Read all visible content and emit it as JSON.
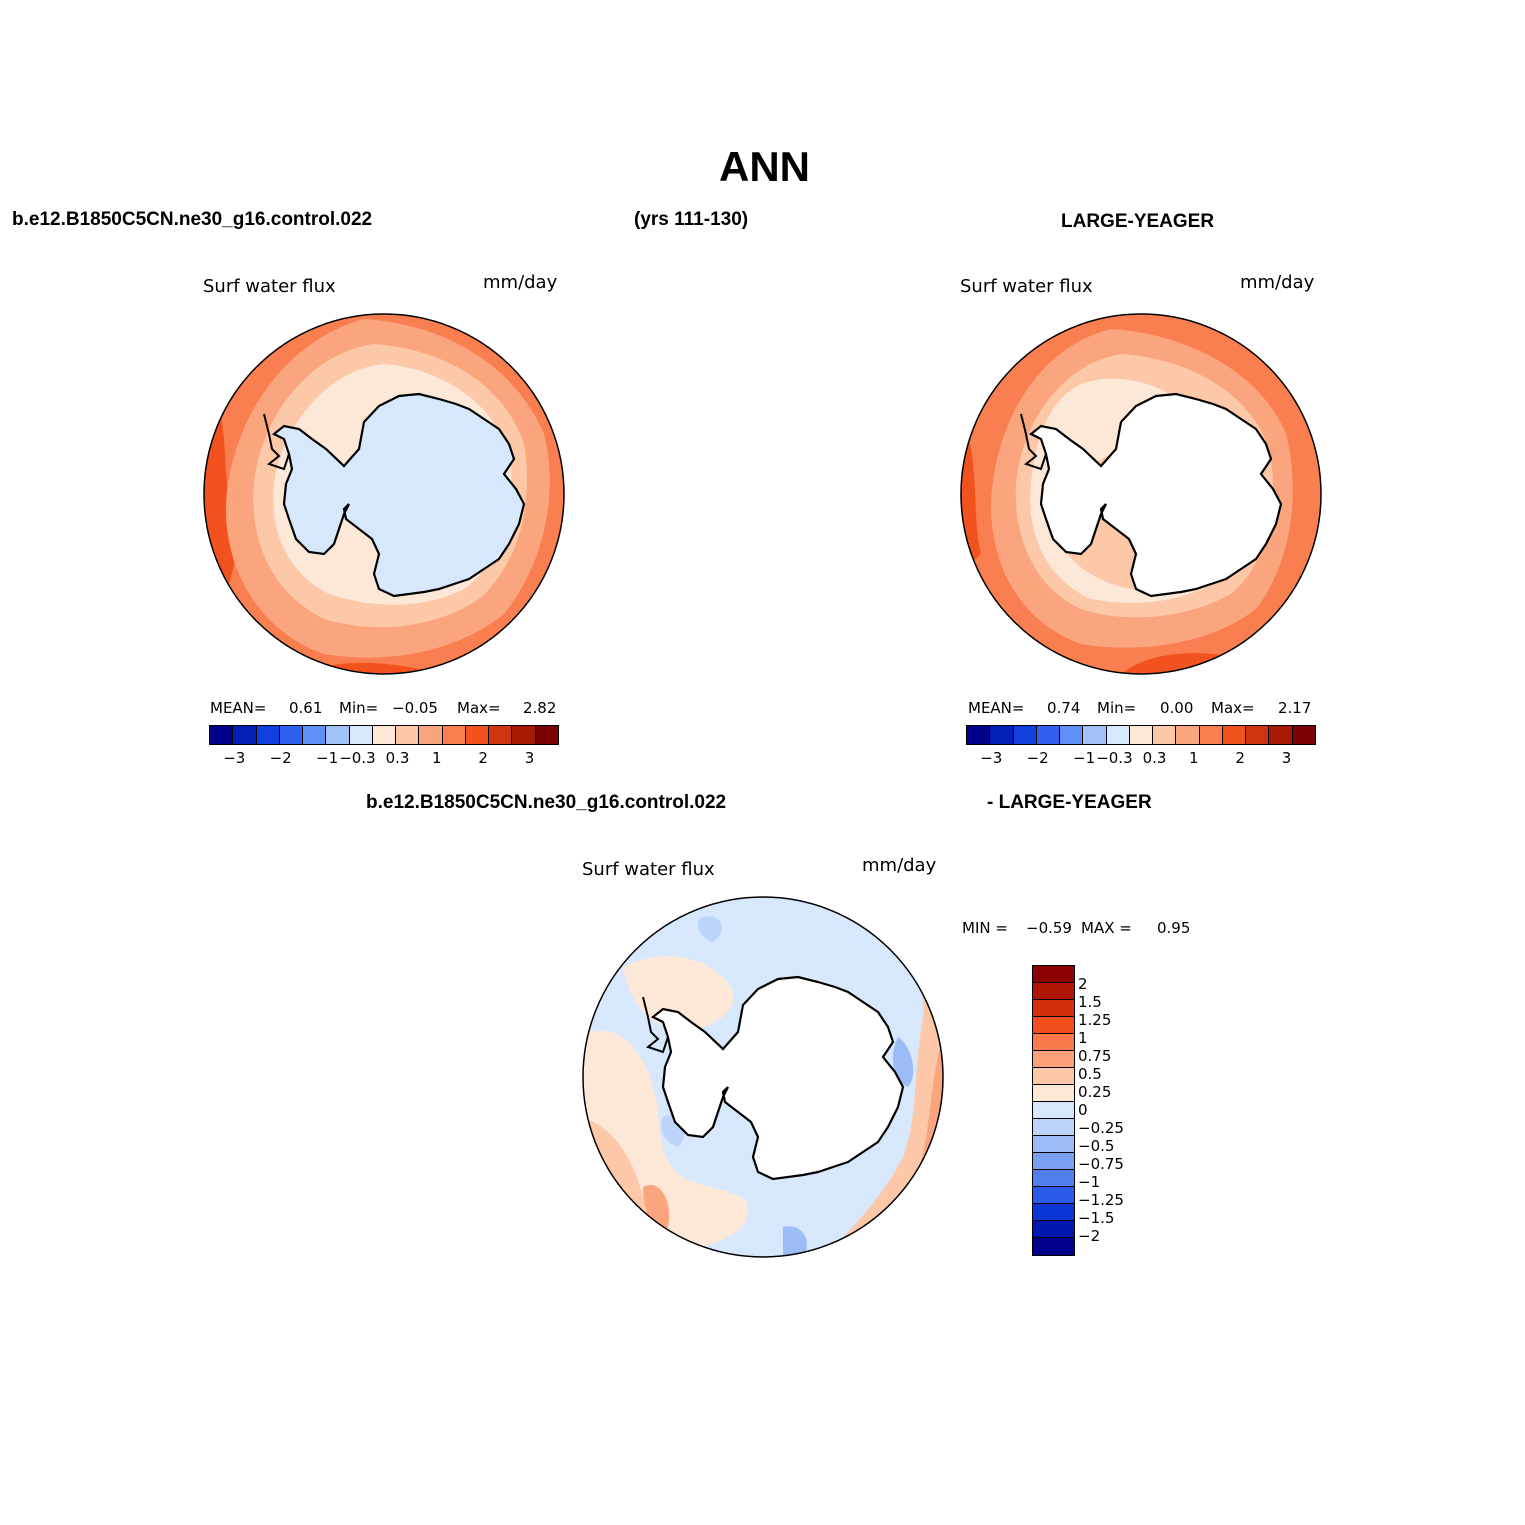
{
  "figure": {
    "title": "ANN",
    "case_name": "b.e12.B1850C5CN.ne30_g16.control.022",
    "years": "(yrs 111-130)",
    "obs_name": "LARGE-YEAGER",
    "diff_case_name": "b.e12.B1850C5CN.ne30_g16.control.022",
    "diff_obs_name": "- LARGE-YEAGER"
  },
  "panels": {
    "model": {
      "variable": "Surf water flux",
      "units": "mm/day",
      "mean_label": "MEAN=",
      "mean": "0.61",
      "min_label": "Min=",
      "min": "−0.05",
      "max_label": "Max=",
      "max": "2.82"
    },
    "obs": {
      "variable": "Surf water flux",
      "units": "mm/day",
      "mean_label": "MEAN=",
      "mean": "0.74",
      "min_label": "Min=",
      "min": "0.00",
      "max_label": "Max=",
      "max": "2.17"
    },
    "diff": {
      "variable": "Surf water flux",
      "units": "mm/day",
      "min_label": "MIN =",
      "min": "−0.59",
      "max_label": "MAX =",
      "max": "0.95"
    }
  },
  "colorbar_main": {
    "colors": [
      "#00008b",
      "#0020b8",
      "#1040e0",
      "#3060f0",
      "#6090f8",
      "#a0c0f8",
      "#d8e8fc",
      "#fde8d8",
      "#fcc8a8",
      "#fba57f",
      "#f97e50",
      "#f2531e",
      "#d03510",
      "#a81a06",
      "#7a0404"
    ],
    "tick_labels": [
      "−3",
      "−2",
      "−1",
      "−0.3",
      "0.3",
      "1",
      "2",
      "3"
    ]
  },
  "colorbar_diff": {
    "colors": [
      "#8b0000",
      "#b01606",
      "#d22e0a",
      "#f24e1c",
      "#fa7a4a",
      "#fca07a",
      "#fdc8a8",
      "#fde8d8",
      "#d8e8fc",
      "#bcd4fa",
      "#9cbcf8",
      "#7aa0f4",
      "#5080ee",
      "#2a5ae8",
      "#0a36d6",
      "#0018b0",
      "#00008b"
    ],
    "tick_labels": [
      "2",
      "1.5",
      "1.25",
      "1",
      "0.75",
      "0.5",
      "0.25",
      "0",
      "−0.25",
      "−0.5",
      "−0.75",
      "−1",
      "−1.25",
      "−1.5",
      "−2"
    ]
  },
  "map_colors": {
    "land_model": "#d8e8fc",
    "land_obs": "#ffffff",
    "land_diff": "#ffffff",
    "c1": "#fde8d8",
    "c2": "#fcc8a8",
    "c3": "#fba57f",
    "c4": "#f97e50",
    "c5": "#f2531e",
    "b1": "#d8e8fc",
    "b2": "#bcd4fa",
    "b3": "#9cbcf8"
  }
}
